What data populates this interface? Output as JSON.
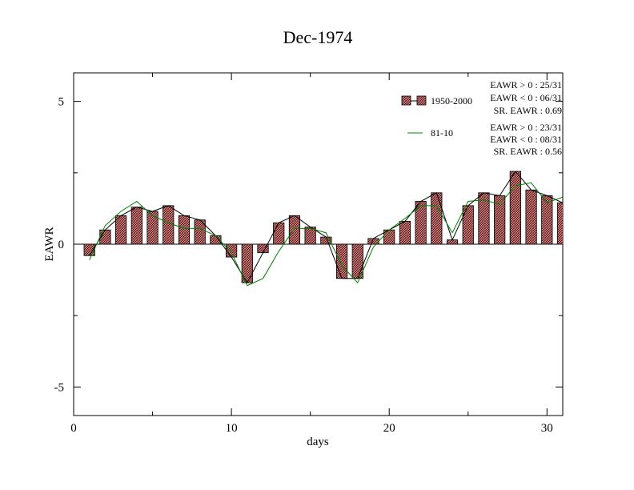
{
  "chart_data": {
    "type": "bar",
    "title": "Dec-1974",
    "xlabel": "days",
    "ylabel": "EAWR",
    "xlim": [
      0,
      31
    ],
    "ylim": [
      -6,
      6
    ],
    "x_ticks": [
      0,
      10,
      20,
      30
    ],
    "y_ticks": [
      5,
      0,
      -5
    ],
    "x": [
      1,
      2,
      3,
      4,
      5,
      6,
      7,
      8,
      9,
      10,
      11,
      12,
      13,
      14,
      15,
      16,
      17,
      18,
      19,
      20,
      21,
      22,
      23,
      24,
      25,
      26,
      27,
      28,
      29,
      30,
      31
    ],
    "series": [
      {
        "name": "1950-2000",
        "style": "hatched-bar-with-black-line",
        "color": "#f08080",
        "values": [
          -0.4,
          0.5,
          1.0,
          1.3,
          1.15,
          1.35,
          1.0,
          0.85,
          0.3,
          -0.45,
          -1.35,
          -0.3,
          0.75,
          1.0,
          0.6,
          0.25,
          -1.2,
          -1.2,
          0.2,
          0.5,
          0.8,
          1.5,
          1.8,
          0.15,
          1.35,
          1.8,
          1.7,
          2.55,
          1.9,
          1.7,
          1.45
        ]
      },
      {
        "name": "81-10",
        "style": "line",
        "color": "#008000",
        "values": [
          -0.55,
          0.65,
          1.15,
          1.5,
          1.0,
          0.75,
          0.55,
          0.55,
          0.3,
          -0.3,
          -1.45,
          -1.2,
          -0.25,
          0.55,
          0.55,
          0.4,
          -0.75,
          -1.35,
          -0.1,
          0.5,
          0.9,
          1.35,
          1.35,
          0.4,
          1.5,
          1.55,
          1.4,
          2.05,
          2.15,
          1.45,
          1.65
        ]
      }
    ],
    "legend_position": "top-right",
    "grid": false
  },
  "stats": {
    "set1": [
      "EAWR > 0 : 25/31",
      "EAWR < 0 : 06/31",
      "SR. EAWR :  0.69"
    ],
    "set2": [
      "EAWR > 0 : 23/31",
      "EAWR < 0 : 08/31",
      "SR. EAWR :  0.56"
    ]
  }
}
